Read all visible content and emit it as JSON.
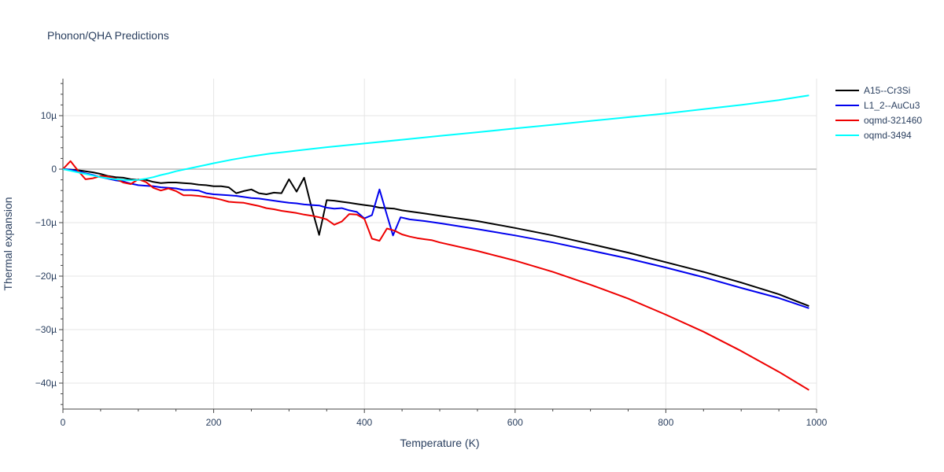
{
  "chart_data": {
    "type": "line",
    "title": "Phonon/QHA Predictions",
    "xlabel": "Temperature (K)",
    "ylabel": "Thermal expansion",
    "xlim": [
      0,
      1000
    ],
    "ylim": [
      -45,
      17
    ],
    "x_ticks": [
      0,
      200,
      400,
      600,
      800,
      1000
    ],
    "x_tick_labels": [
      "0",
      "200",
      "400",
      "600",
      "800",
      "1000"
    ],
    "y_ticks": [
      10,
      0,
      -10,
      -20,
      -30,
      -40
    ],
    "y_tick_labels": [
      "10µ",
      "0",
      "−10µ",
      "−20µ",
      "−30µ",
      "−40µ"
    ],
    "grid": true,
    "legend": "top-right",
    "series": [
      {
        "name": "A15--Cr3Si",
        "color": "#000000",
        "points": [
          [
            0,
            0
          ],
          [
            10,
            -0.1
          ],
          [
            20,
            -0.2
          ],
          [
            30,
            -0.4
          ],
          [
            40,
            -0.6
          ],
          [
            50,
            -0.9
          ],
          [
            60,
            -1.3
          ],
          [
            70,
            -1.5
          ],
          [
            80,
            -1.6
          ],
          [
            90,
            -1.9
          ],
          [
            100,
            -2.0
          ],
          [
            110,
            -2.0
          ],
          [
            120,
            -2.4
          ],
          [
            130,
            -2.6
          ],
          [
            140,
            -2.5
          ],
          [
            150,
            -2.5
          ],
          [
            160,
            -2.6
          ],
          [
            170,
            -2.7
          ],
          [
            180,
            -2.9
          ],
          [
            190,
            -3.0
          ],
          [
            200,
            -3.2
          ],
          [
            210,
            -3.2
          ],
          [
            220,
            -3.4
          ],
          [
            230,
            -4.5
          ],
          [
            240,
            -4.1
          ],
          [
            250,
            -3.8
          ],
          [
            260,
            -4.5
          ],
          [
            270,
            -4.7
          ],
          [
            280,
            -4.4
          ],
          [
            290,
            -4.5
          ],
          [
            300,
            -1.9
          ],
          [
            310,
            -4.2
          ],
          [
            320,
            -1.6
          ],
          [
            330,
            -7.2
          ],
          [
            340,
            -12.3
          ],
          [
            350,
            -5.8
          ],
          [
            360,
            -5.9
          ],
          [
            370,
            -6.1
          ],
          [
            380,
            -6.3
          ],
          [
            390,
            -6.5
          ],
          [
            400,
            -6.7
          ],
          [
            410,
            -6.9
          ],
          [
            420,
            -7.2
          ],
          [
            430,
            -7.3
          ],
          [
            440,
            -7.4
          ],
          [
            450,
            -7.7
          ],
          [
            460,
            -7.9
          ],
          [
            480,
            -8.3
          ],
          [
            500,
            -8.7
          ],
          [
            550,
            -9.7
          ],
          [
            600,
            -11.0
          ],
          [
            650,
            -12.4
          ],
          [
            700,
            -14.0
          ],
          [
            750,
            -15.6
          ],
          [
            800,
            -17.4
          ],
          [
            850,
            -19.2
          ],
          [
            900,
            -21.2
          ],
          [
            950,
            -23.4
          ],
          [
            990,
            -25.6
          ]
        ]
      },
      {
        "name": "L1_2--AuCu3",
        "color": "#0000ee",
        "points": [
          [
            0,
            0
          ],
          [
            10,
            -0.1
          ],
          [
            20,
            -0.4
          ],
          [
            30,
            -0.8
          ],
          [
            40,
            -1.1
          ],
          [
            50,
            -1.5
          ],
          [
            60,
            -1.8
          ],
          [
            70,
            -2.1
          ],
          [
            80,
            -2.3
          ],
          [
            90,
            -2.7
          ],
          [
            100,
            -3.0
          ],
          [
            110,
            -3.1
          ],
          [
            120,
            -3.2
          ],
          [
            130,
            -3.4
          ],
          [
            140,
            -3.5
          ],
          [
            150,
            -3.6
          ],
          [
            160,
            -3.9
          ],
          [
            170,
            -3.9
          ],
          [
            180,
            -4.0
          ],
          [
            190,
            -4.5
          ],
          [
            200,
            -4.7
          ],
          [
            210,
            -4.8
          ],
          [
            220,
            -4.9
          ],
          [
            230,
            -5.0
          ],
          [
            240,
            -5.2
          ],
          [
            250,
            -5.4
          ],
          [
            260,
            -5.5
          ],
          [
            270,
            -5.7
          ],
          [
            280,
            -5.9
          ],
          [
            290,
            -6.1
          ],
          [
            300,
            -6.3
          ],
          [
            310,
            -6.4
          ],
          [
            320,
            -6.6
          ],
          [
            330,
            -6.7
          ],
          [
            340,
            -6.8
          ],
          [
            350,
            -7.2
          ],
          [
            360,
            -7.4
          ],
          [
            370,
            -7.3
          ],
          [
            380,
            -7.7
          ],
          [
            390,
            -8.0
          ],
          [
            400,
            -9.2
          ],
          [
            410,
            -8.6
          ],
          [
            420,
            -3.8
          ],
          [
            430,
            -8.6
          ],
          [
            438,
            -12.4
          ],
          [
            448,
            -9.0
          ],
          [
            460,
            -9.4
          ],
          [
            480,
            -9.7
          ],
          [
            500,
            -10.1
          ],
          [
            550,
            -11.2
          ],
          [
            600,
            -12.4
          ],
          [
            650,
            -13.7
          ],
          [
            700,
            -15.2
          ],
          [
            750,
            -16.7
          ],
          [
            800,
            -18.4
          ],
          [
            850,
            -20.2
          ],
          [
            900,
            -22.2
          ],
          [
            950,
            -24.1
          ],
          [
            990,
            -26.0
          ]
        ]
      },
      {
        "name": "oqmd-321460",
        "color": "#ee0000",
        "points": [
          [
            0,
            0
          ],
          [
            10,
            1.5
          ],
          [
            20,
            -0.3
          ],
          [
            30,
            -1.9
          ],
          [
            40,
            -1.7
          ],
          [
            50,
            -1.3
          ],
          [
            60,
            -1.4
          ],
          [
            70,
            -1.8
          ],
          [
            80,
            -2.5
          ],
          [
            90,
            -2.8
          ],
          [
            100,
            -1.9
          ],
          [
            110,
            -2.4
          ],
          [
            120,
            -3.5
          ],
          [
            130,
            -4.0
          ],
          [
            140,
            -3.6
          ],
          [
            150,
            -4.1
          ],
          [
            160,
            -4.9
          ],
          [
            170,
            -4.9
          ],
          [
            180,
            -5.0
          ],
          [
            190,
            -5.2
          ],
          [
            200,
            -5.4
          ],
          [
            210,
            -5.7
          ],
          [
            220,
            -6.1
          ],
          [
            230,
            -6.2
          ],
          [
            240,
            -6.3
          ],
          [
            250,
            -6.6
          ],
          [
            260,
            -6.9
          ],
          [
            270,
            -7.3
          ],
          [
            280,
            -7.5
          ],
          [
            290,
            -7.8
          ],
          [
            300,
            -8.0
          ],
          [
            310,
            -8.2
          ],
          [
            320,
            -8.5
          ],
          [
            330,
            -8.7
          ],
          [
            340,
            -9.0
          ],
          [
            350,
            -9.4
          ],
          [
            360,
            -10.4
          ],
          [
            370,
            -9.8
          ],
          [
            380,
            -8.4
          ],
          [
            390,
            -8.5
          ],
          [
            400,
            -9.3
          ],
          [
            410,
            -13.0
          ],
          [
            420,
            -13.4
          ],
          [
            430,
            -11.1
          ],
          [
            440,
            -11.5
          ],
          [
            450,
            -12.2
          ],
          [
            460,
            -12.6
          ],
          [
            470,
            -12.9
          ],
          [
            480,
            -13.1
          ],
          [
            490,
            -13.3
          ],
          [
            500,
            -13.7
          ],
          [
            550,
            -15.3
          ],
          [
            600,
            -17.1
          ],
          [
            650,
            -19.2
          ],
          [
            700,
            -21.6
          ],
          [
            750,
            -24.2
          ],
          [
            800,
            -27.2
          ],
          [
            850,
            -30.4
          ],
          [
            900,
            -34.0
          ],
          [
            950,
            -37.9
          ],
          [
            990,
            -41.3
          ]
        ]
      },
      {
        "name": "oqmd-3494",
        "color": "#00ffff",
        "points": [
          [
            0,
            0
          ],
          [
            10,
            -0.3
          ],
          [
            20,
            -0.6
          ],
          [
            30,
            -0.9
          ],
          [
            40,
            -1.2
          ],
          [
            50,
            -1.5
          ],
          [
            60,
            -1.7
          ],
          [
            70,
            -1.9
          ],
          [
            80,
            -2.0
          ],
          [
            90,
            -2.1
          ],
          [
            100,
            -2.0
          ],
          [
            110,
            -1.8
          ],
          [
            120,
            -1.5
          ],
          [
            130,
            -1.1
          ],
          [
            140,
            -0.8
          ],
          [
            150,
            -0.4
          ],
          [
            160,
            -0.1
          ],
          [
            170,
            0.2
          ],
          [
            180,
            0.5
          ],
          [
            190,
            0.8
          ],
          [
            200,
            1.1
          ],
          [
            225,
            1.8
          ],
          [
            250,
            2.4
          ],
          [
            275,
            2.9
          ],
          [
            300,
            3.3
          ],
          [
            350,
            4.1
          ],
          [
            400,
            4.8
          ],
          [
            450,
            5.5
          ],
          [
            500,
            6.2
          ],
          [
            550,
            6.9
          ],
          [
            600,
            7.6
          ],
          [
            650,
            8.3
          ],
          [
            700,
            9.0
          ],
          [
            750,
            9.7
          ],
          [
            800,
            10.4
          ],
          [
            850,
            11.2
          ],
          [
            900,
            12.0
          ],
          [
            950,
            12.9
          ],
          [
            990,
            13.8
          ]
        ]
      }
    ]
  }
}
